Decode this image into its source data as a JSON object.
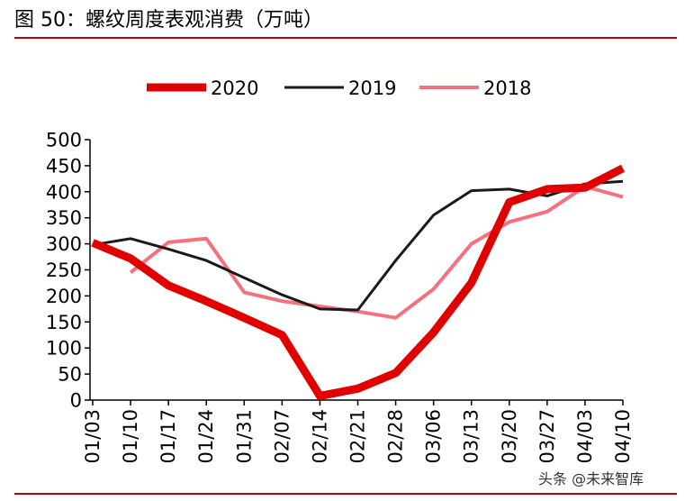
{
  "header": {
    "title": "图 50：螺纹周度表观消费（万吨）"
  },
  "watermark": "头条 @未来智库",
  "chart_data": {
    "type": "line",
    "title": "",
    "xlabel": "",
    "ylabel": "",
    "categories": [
      "01/03",
      "01/10",
      "01/17",
      "01/24",
      "01/31",
      "02/07",
      "02/14",
      "02/21",
      "02/28",
      "03/06",
      "03/13",
      "03/20",
      "03/27",
      "04/03",
      "04/10"
    ],
    "yticks": [
      0,
      50,
      100,
      150,
      200,
      250,
      300,
      350,
      400,
      450,
      500
    ],
    "ylim": [
      0,
      500
    ],
    "grid": false,
    "legend_position": "top",
    "series": [
      {
        "name": "2020",
        "color": "#e00000",
        "width": 9,
        "values": [
          302,
          272,
          220,
          190,
          158,
          125,
          8,
          22,
          52,
          130,
          225,
          380,
          405,
          408,
          445
        ]
      },
      {
        "name": "2019",
        "color": "#1a1a1a",
        "width": 3,
        "values": [
          298,
          310,
          290,
          268,
          235,
          202,
          175,
          173,
          268,
          355,
          402,
          405,
          392,
          415,
          420
        ]
      },
      {
        "name": "2018",
        "color": "#f4717d",
        "width": 4,
        "values": [
          null,
          245,
          303,
          310,
          207,
          190,
          180,
          170,
          158,
          213,
          300,
          342,
          362,
          410,
          390
        ]
      }
    ]
  }
}
